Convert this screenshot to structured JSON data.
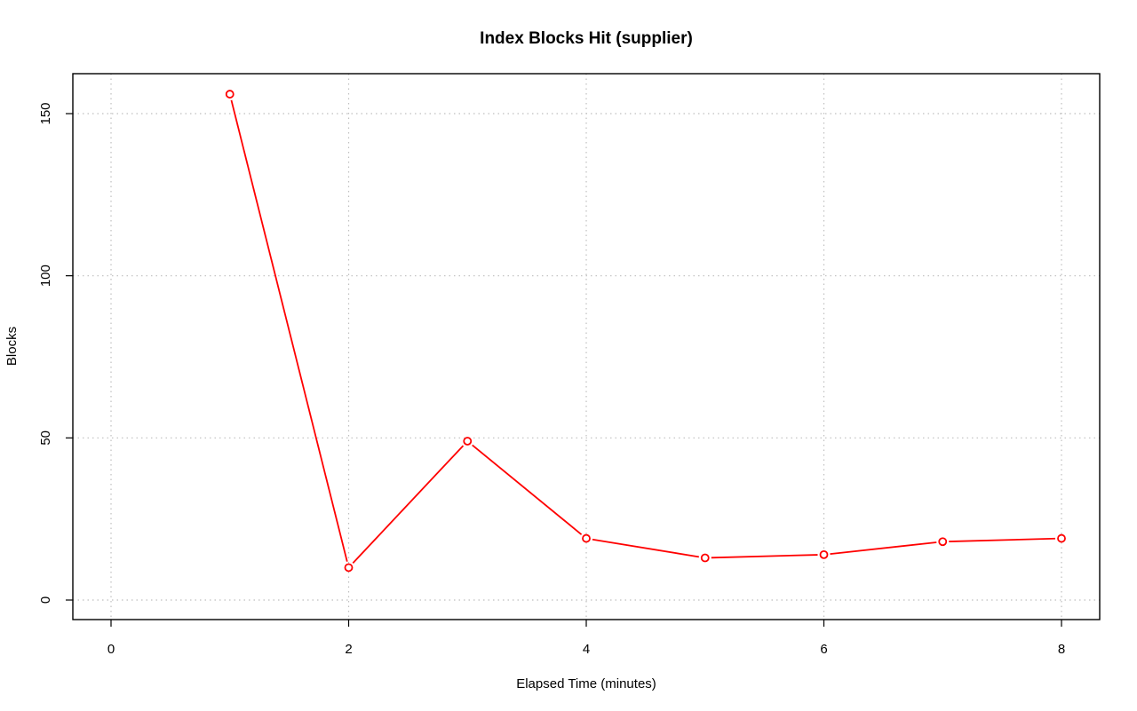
{
  "chart_data": {
    "type": "line",
    "title": "Index Blocks Hit (supplier)",
    "xlabel": "Elapsed Time (minutes)",
    "ylabel": "Blocks",
    "xlim": [
      0,
      8
    ],
    "ylim": [
      0,
      150
    ],
    "x_ticks": [
      0,
      2,
      4,
      6,
      8
    ],
    "y_ticks": [
      0,
      50,
      100,
      150
    ],
    "grid": true,
    "series": [
      {
        "color": "#ff0000",
        "x": [
          1,
          2,
          3,
          4,
          5,
          6,
          7,
          8
        ],
        "y": [
          156,
          10,
          49,
          19,
          13,
          14,
          18,
          19
        ]
      }
    ]
  }
}
